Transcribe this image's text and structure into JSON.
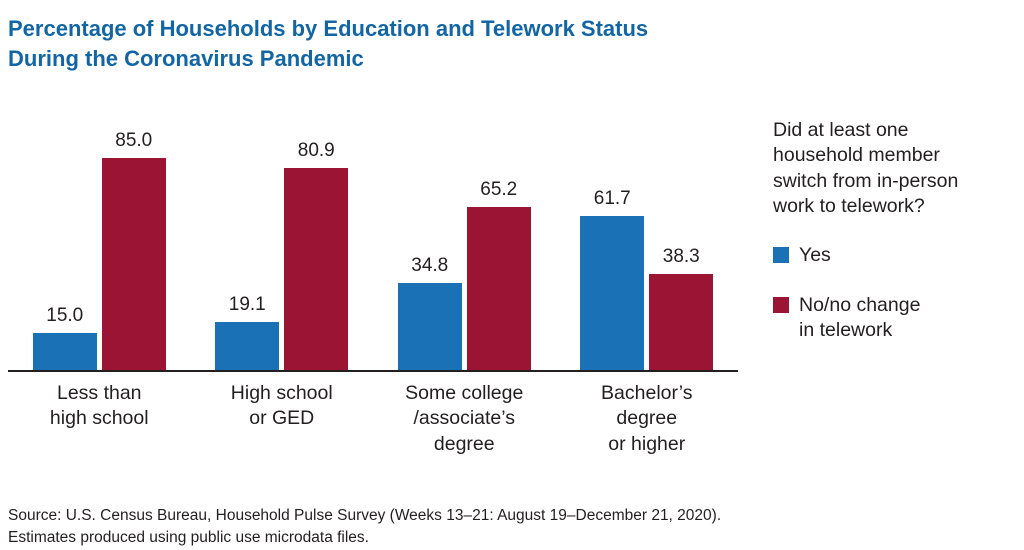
{
  "title": "Percentage of Households by Education and Telework Status During the Coronavirus Pandemic",
  "colors": {
    "title_blue": "#1266a5",
    "yes_blue": "#1a71b5",
    "no_maroon": "#9c1433",
    "axis": "#231f20",
    "text": "#231f20"
  },
  "legend": {
    "question": "Did at least one\nhousehold member\nswitch from in-person\nwork to telework?",
    "items": [
      {
        "key": "yes",
        "label": "Yes",
        "color": "#1a71b5"
      },
      {
        "key": "no",
        "label": "No/no change\nin telework",
        "color": "#9c1433"
      }
    ]
  },
  "source": {
    "line1": "Source: U.S. Census Bureau, Household Pulse Survey (Weeks 13–21: August 19–December 21, 2020).",
    "line2": "Estimates produced using public use microdata files."
  },
  "chart_data": {
    "type": "bar",
    "categories": [
      "Less than\nhigh school",
      "High school\nor GED",
      "Some college\n/associate’s\ndegree",
      "Bachelor’s\ndegree\nor higher"
    ],
    "series": [
      {
        "key": "yes",
        "name": "Yes",
        "color": "#1a71b5",
        "values": [
          15.0,
          19.1,
          34.8,
          61.7
        ]
      },
      {
        "key": "no",
        "name": "No/no change in telework",
        "color": "#9c1433",
        "values": [
          85.0,
          80.9,
          65.2,
          38.3
        ]
      }
    ],
    "title": "Percentage of Households by Education and Telework Status During the Coronavirus Pandemic",
    "xlabel": "",
    "ylabel": "",
    "ylim": [
      0,
      100
    ],
    "grid": false,
    "legend_position": "right",
    "value_labels": true
  }
}
